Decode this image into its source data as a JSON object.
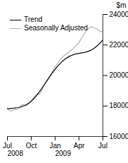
{
  "chart_data": {
    "type": "line",
    "x": [
      0,
      0.25,
      0.5,
      0.75,
      1,
      1.25,
      1.5,
      1.75,
      2,
      2.25,
      2.5,
      2.75,
      3,
      3.25,
      3.5,
      3.75,
      4,
      4.25,
      4.5,
      4.75,
      5,
      5.25,
      5.5,
      5.75,
      6,
      6.25,
      6.5,
      6.75,
      7,
      7.25,
      7.5,
      7.75,
      8,
      8.25,
      8.5,
      8.75,
      9,
      9.25,
      9.5,
      9.75,
      10,
      10.25,
      10.5,
      10.75,
      11,
      11.25,
      11.5,
      11.75,
      12
    ],
    "series": [
      {
        "name": "Trend",
        "color": "#000000",
        "values": [
          17820,
          17830,
          17845,
          17860,
          17875,
          17895,
          17920,
          17955,
          18000,
          18055,
          18125,
          18210,
          18315,
          18440,
          18585,
          18745,
          18920,
          19105,
          19295,
          19490,
          19685,
          19878,
          20065,
          20245,
          20415,
          20573,
          20718,
          20850,
          20968,
          21073,
          21165,
          21243,
          21308,
          21360,
          21400,
          21430,
          21455,
          21475,
          21495,
          21520,
          21555,
          21600,
          21660,
          21735,
          21825,
          21930,
          22050,
          22185,
          22335
        ]
      },
      {
        "name": "Seasonally Adjusted",
        "color": "#b0b0b0",
        "values": [
          17900,
          17700,
          17680,
          17730,
          17810,
          17780,
          17850,
          18050,
          18100,
          18000,
          18050,
          18200,
          18350,
          18550,
          18700,
          18800,
          18750,
          18950,
          19200,
          19500,
          19700,
          19850,
          20100,
          20350,
          20600,
          20750,
          20950,
          21100,
          21250,
          21350,
          21450,
          21550,
          21650,
          21750,
          21900,
          22000,
          22150,
          22400,
          22600,
          22800,
          23000,
          23100,
          23200,
          23150,
          23100,
          23050,
          22950,
          22850,
          22950
        ]
      }
    ],
    "xlim": [
      0,
      12
    ],
    "xticks": [
      {
        "value": 0,
        "label": "Jul"
      },
      {
        "value": 3,
        "label": "Oct"
      },
      {
        "value": 6,
        "label": "Jan"
      },
      {
        "value": 9,
        "label": "Apr"
      },
      {
        "value": 12,
        "label": "Jul"
      }
    ],
    "ylabel": "$m",
    "ylim": [
      16000,
      24000
    ],
    "yticks": [
      16000,
      18000,
      20000,
      22000,
      24000
    ],
    "annotations": [
      {
        "text": "2008",
        "x": 0
      },
      {
        "text": "2009",
        "x": 6
      }
    ],
    "legend": "upper left"
  }
}
